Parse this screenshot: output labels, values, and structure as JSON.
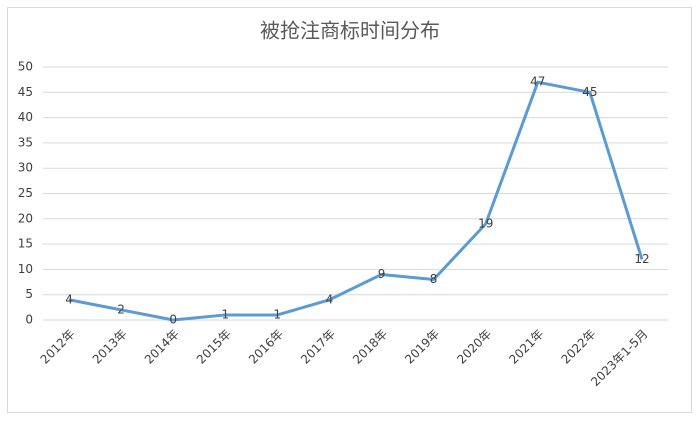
{
  "chart_data": {
    "type": "line",
    "title": "被抢注商标时间分布",
    "categories": [
      "2012年",
      "2013年",
      "2014年",
      "2015年",
      "2016年",
      "2017年",
      "2018年",
      "2019年",
      "2020年",
      "2021年",
      "2022年",
      "2023年1-5月"
    ],
    "values": [
      4,
      2,
      0,
      1,
      1,
      4,
      9,
      8,
      19,
      47,
      45,
      12
    ],
    "color": "#5b9bd5",
    "ylim": [
      0,
      50
    ],
    "yticks": [
      0,
      5,
      10,
      15,
      20,
      25,
      30,
      35,
      40,
      45,
      50
    ],
    "grid": true
  }
}
